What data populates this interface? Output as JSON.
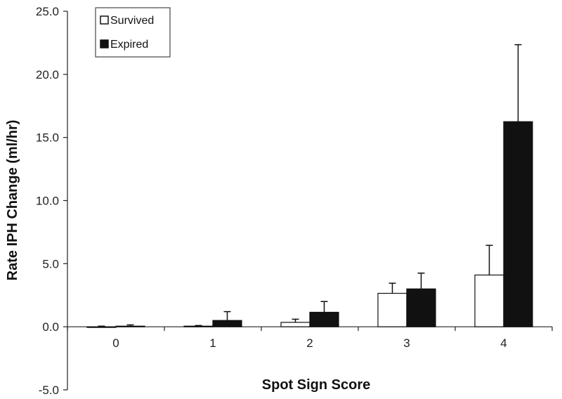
{
  "chart_data": {
    "type": "bar",
    "title": "",
    "xlabel": "Spot Sign Score",
    "ylabel": "Rate IPH Change (ml/hr)",
    "categories": [
      "0",
      "1",
      "2",
      "3",
      "4"
    ],
    "ylim": [
      -5.0,
      25.0
    ],
    "yticks": [
      "25.0",
      "20.0",
      "15.0",
      "10.0",
      "5.0",
      "0.0",
      "-5.0"
    ],
    "legend_position": "top-left",
    "grid": false,
    "error_bars": true,
    "series": [
      {
        "name": "Survived",
        "color": "#ffffff",
        "values": [
          -0.05,
          0.05,
          0.35,
          2.65,
          4.1
        ],
        "error_upper": [
          0.05,
          0.05,
          0.25,
          0.8,
          2.35
        ]
      },
      {
        "name": "Expired",
        "color": "#111111",
        "values": [
          0.05,
          0.5,
          1.15,
          3.0,
          16.25
        ],
        "error_upper": [
          0.1,
          0.7,
          0.85,
          1.25,
          6.1
        ]
      }
    ]
  }
}
